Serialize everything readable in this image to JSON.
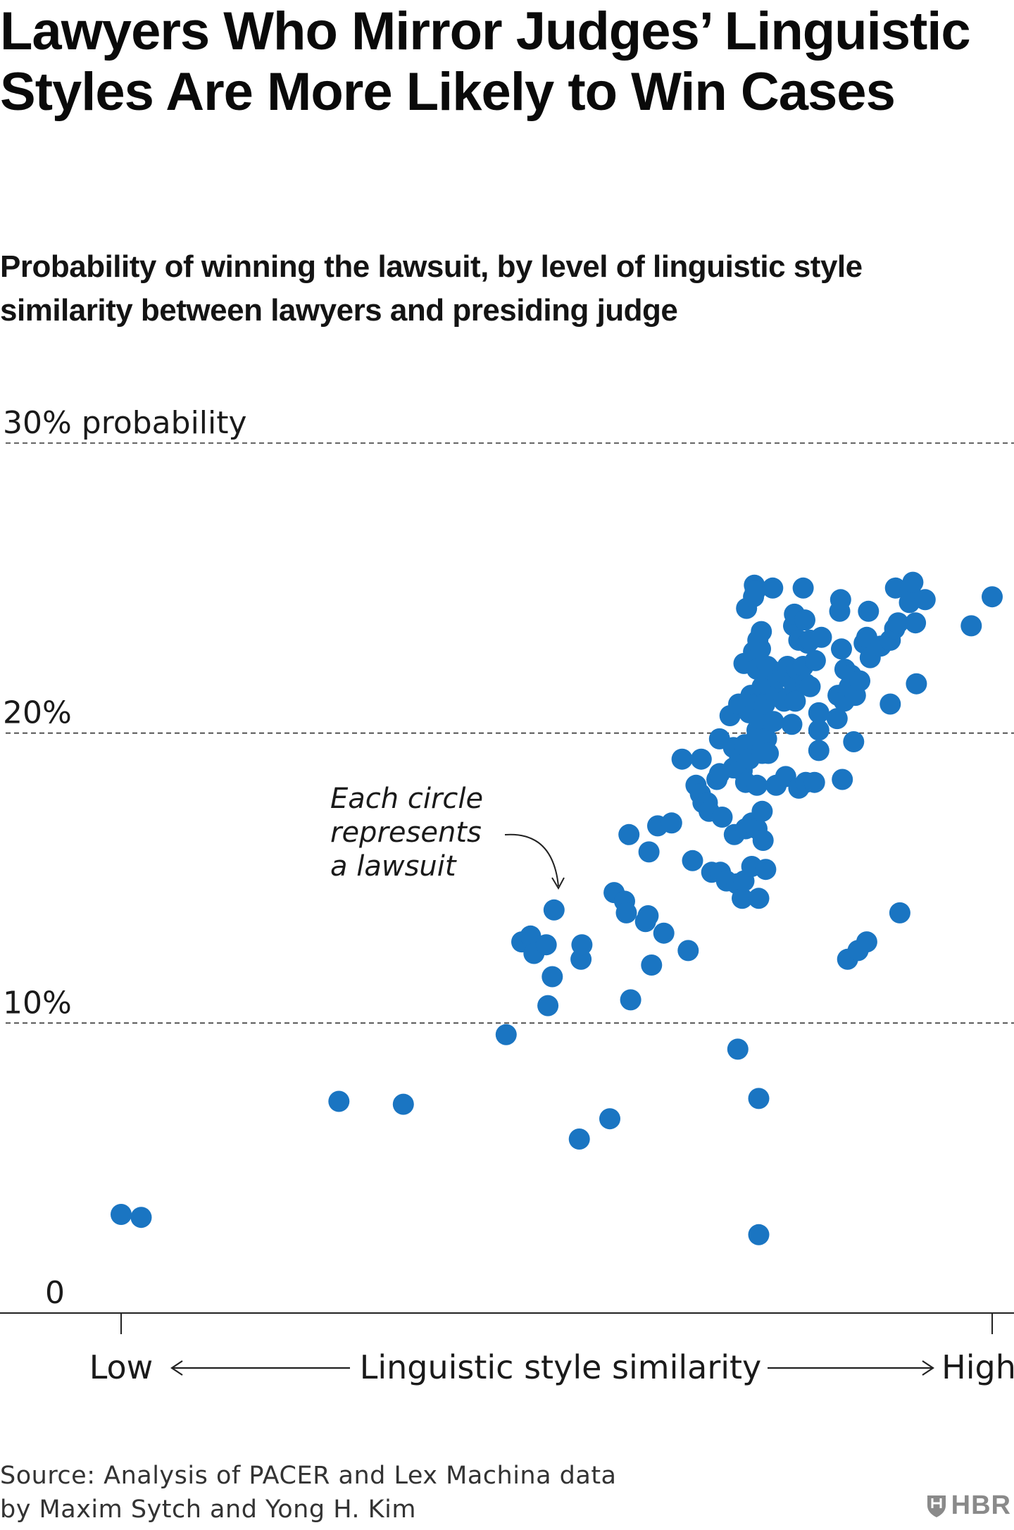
{
  "title": "Lawyers Who Mirror Judges’ Linguistic Styles Are More Likely to Win Cases",
  "subtitle": "Probability of winning the lawsuit, by level of linguistic style similarity between lawyers and presiding judge",
  "source": "Source: Analysis of PACER and Lex Machina data",
  "source_line2": "by Maxim Sytch and Yong H. Kim",
  "logo_text": "HBR",
  "colors": {
    "dots": "#1a75c2",
    "text": "#111111",
    "grid": "#333333",
    "logo": "#8a8a8a"
  },
  "chart_data": {
    "type": "scatter",
    "title": "Lawyers Who Mirror Judges’ Linguistic Styles Are More Likely to Win Cases",
    "subtitle": "Probability of winning the lawsuit, by level of linguistic style similarity between lawyers and presiding judge",
    "xlabel": "Linguistic style similarity",
    "x_low_label": "Low",
    "x_high_label": "High",
    "xlim": [
      0,
      100
    ],
    "ylim": [
      0,
      30
    ],
    "y_ticks": [
      {
        "value": 0,
        "label": "0"
      },
      {
        "value": 10,
        "label": "10%"
      },
      {
        "value": 20,
        "label": "20%"
      },
      {
        "value": 30,
        "label": "30% probability"
      }
    ],
    "grid": "dashed horizontal at 10, 20, 30",
    "annotation": [
      "Each circle",
      "represents",
      "a lawsuit"
    ],
    "points": [
      [
        0,
        3.4
      ],
      [
        2.3,
        3.3
      ],
      [
        25,
        7.3
      ],
      [
        32.4,
        7.2
      ],
      [
        44.2,
        9.6
      ],
      [
        46,
        12.8
      ],
      [
        47,
        13
      ],
      [
        47.4,
        12.4
      ],
      [
        48.8,
        12.7
      ],
      [
        49,
        10.6
      ],
      [
        49.5,
        11.6
      ],
      [
        49.7,
        13.9
      ],
      [
        52.8,
        12.2
      ],
      [
        52.9,
        12.7
      ],
      [
        52.6,
        6
      ],
      [
        56.1,
        6.7
      ],
      [
        56.6,
        14.5
      ],
      [
        57.8,
        14.2
      ],
      [
        58,
        13.8
      ],
      [
        58.3,
        16.5
      ],
      [
        58.5,
        10.8
      ],
      [
        60.2,
        13.5
      ],
      [
        60.5,
        13.7
      ],
      [
        60.6,
        15.9
      ],
      [
        60.9,
        12
      ],
      [
        61.6,
        16.8
      ],
      [
        62.3,
        13.1
      ],
      [
        63.2,
        16.9
      ],
      [
        64.4,
        19.1
      ],
      [
        65.1,
        12.5
      ],
      [
        65.6,
        15.6
      ],
      [
        66,
        18.2
      ],
      [
        66.5,
        17.9
      ],
      [
        66.6,
        19.1
      ],
      [
        66.8,
        17.6
      ],
      [
        67.3,
        17.6
      ],
      [
        67.5,
        17.3
      ],
      [
        67.8,
        15.2
      ],
      [
        68.4,
        18.4
      ],
      [
        68.7,
        19.8
      ],
      [
        68.7,
        18.6
      ],
      [
        68.8,
        15.2
      ],
      [
        69,
        17.1
      ],
      [
        69.5,
        14.9
      ],
      [
        69.9,
        20.6
      ],
      [
        70.3,
        18.8
      ],
      [
        70.3,
        19.5
      ],
      [
        70.4,
        16.5
      ],
      [
        70.7,
        14.8
      ],
      [
        70.8,
        9.1
      ],
      [
        70.9,
        21
      ],
      [
        71,
        19.1
      ],
      [
        71.3,
        18.7
      ],
      [
        71.3,
        14.3
      ],
      [
        71.5,
        22.4
      ],
      [
        71.5,
        14.9
      ],
      [
        71.6,
        19.6
      ],
      [
        71.7,
        18.3
      ],
      [
        71.7,
        16.7
      ],
      [
        71.8,
        24.3
      ],
      [
        72.1,
        20.7
      ],
      [
        72.1,
        19.1
      ],
      [
        72.3,
        21.3
      ],
      [
        72.4,
        16.9
      ],
      [
        72.4,
        15.4
      ],
      [
        72.6,
        22.8
      ],
      [
        72.6,
        24.7
      ],
      [
        72.7,
        25.1
      ],
      [
        72.8,
        24.9
      ],
      [
        72.8,
        21
      ],
      [
        72.9,
        20.9
      ],
      [
        73,
        20.1
      ],
      [
        73,
        22.2
      ],
      [
        73,
        19.9
      ],
      [
        73,
        18.2
      ],
      [
        73,
        16.7
      ],
      [
        73.1,
        23.2
      ],
      [
        73.2,
        7.4
      ],
      [
        73.2,
        14.3
      ],
      [
        73.2,
        2.7
      ],
      [
        73.3,
        20.5
      ],
      [
        73.4,
        22.9
      ],
      [
        73.5,
        23.5
      ],
      [
        73.6,
        21.6
      ],
      [
        73.6,
        19.3
      ],
      [
        73.6,
        17.3
      ],
      [
        73.7,
        16.3
      ],
      [
        73.9,
        21
      ],
      [
        74,
        21.7
      ],
      [
        74,
        15.3
      ],
      [
        74.1,
        19.8
      ],
      [
        74.2,
        22.3
      ],
      [
        74.3,
        19.3
      ],
      [
        74.5,
        22.2
      ],
      [
        74.8,
        25
      ],
      [
        74.9,
        20.4
      ],
      [
        75.2,
        21.3
      ],
      [
        75.2,
        18.2
      ],
      [
        75.4,
        21.9
      ],
      [
        75.9,
        22.1
      ],
      [
        76.1,
        21.1
      ],
      [
        76.3,
        18.5
      ],
      [
        76.5,
        22.3
      ],
      [
        77,
        20.3
      ],
      [
        77.2,
        23.7
      ],
      [
        77.3,
        24.1
      ],
      [
        77.3,
        21.6
      ],
      [
        77.4,
        21.1
      ],
      [
        77.6,
        22.2
      ],
      [
        77.8,
        23.2
      ],
      [
        77.8,
        18.1
      ],
      [
        78.3,
        25
      ],
      [
        78.3,
        22.3
      ],
      [
        78.5,
        23.9
      ],
      [
        78.6,
        21.7
      ],
      [
        78.6,
        18.3
      ],
      [
        78.8,
        23.1
      ],
      [
        79.1,
        21.6
      ],
      [
        79.1,
        23.2
      ],
      [
        79.6,
        18.3
      ],
      [
        79.7,
        22.5
      ],
      [
        80.1,
        20.7
      ],
      [
        80.1,
        20.1
      ],
      [
        80.1,
        19.4
      ],
      [
        80.4,
        23.3
      ],
      [
        82.2,
        20.5
      ],
      [
        82.3,
        21.3
      ],
      [
        82.5,
        24.2
      ],
      [
        82.6,
        24.6
      ],
      [
        82.7,
        22.9
      ],
      [
        82.8,
        18.4
      ],
      [
        83,
        21.1
      ],
      [
        83.1,
        22.2
      ],
      [
        83.4,
        12.2
      ],
      [
        83.6,
        21.6
      ],
      [
        83.8,
        22
      ],
      [
        84.1,
        19.7
      ],
      [
        84.3,
        21.3
      ],
      [
        84.6,
        12.5
      ],
      [
        84.8,
        21.8
      ],
      [
        85.3,
        23.1
      ],
      [
        85.6,
        12.8
      ],
      [
        85.6,
        23.3
      ],
      [
        85.8,
        24.2
      ],
      [
        86,
        22.6
      ],
      [
        87.2,
        23
      ],
      [
        88.3,
        23.2
      ],
      [
        88.3,
        21
      ],
      [
        88.8,
        23.6
      ],
      [
        88.9,
        25
      ],
      [
        89.2,
        23.8
      ],
      [
        89.4,
        13.8
      ],
      [
        90.5,
        24.5
      ],
      [
        90.6,
        24.9
      ],
      [
        90.9,
        25.2
      ],
      [
        91.2,
        23.8
      ],
      [
        91.3,
        21.7
      ],
      [
        92.3,
        24.6
      ],
      [
        97.6,
        23.7
      ],
      [
        100,
        24.7
      ]
    ]
  }
}
